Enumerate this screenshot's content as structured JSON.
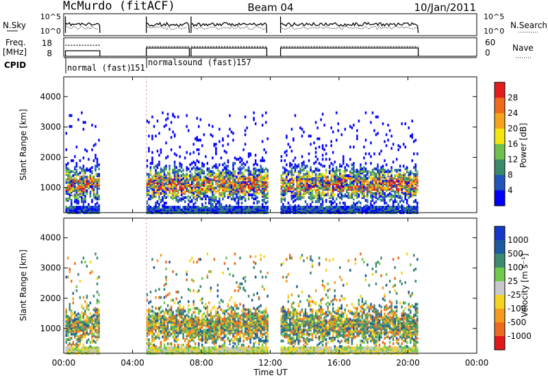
{
  "header": {
    "station": "McMurdo (fitACF)",
    "beam": "Beam 04",
    "date": "10/Jan/2011"
  },
  "status_panels": {
    "nsky_label": "N.Sky",
    "nsky_ticks": [
      "10^5",
      "10^0"
    ],
    "nsky_right_ticks": [
      "10^5",
      "10^0"
    ],
    "nsearch_label": "N.Search",
    "freq_label_1": "Freq.",
    "freq_label_2": "[MHz]",
    "freq_ticks": [
      "18",
      "8"
    ],
    "nave_ticks": [
      "60",
      "0"
    ],
    "nave_label": "Nave",
    "cpid_label": "CPID",
    "cpid_segments": [
      {
        "start_hour": 0.05,
        "end_hour": 4.8,
        "label": "normal (fast)",
        "id": "151"
      },
      {
        "start_hour": 4.8,
        "end_hour": 20.6,
        "label": "normalsound (fast)",
        "id": "157"
      }
    ]
  },
  "chart_data": [
    {
      "type": "heatmap",
      "name": "Power",
      "ylabel": "Slant Range [km]",
      "ylim": [
        180,
        4650
      ],
      "yticks": [
        "1000",
        "2000",
        "3000",
        "4000"
      ],
      "xlim": [
        0,
        24
      ],
      "colorbar_label": "Power [dB]",
      "colorbar_ticks": [
        "4",
        "8",
        "12",
        "16",
        "20",
        "24",
        "28"
      ],
      "colorbar_colors": [
        "#0000ff",
        "#2255bb",
        "#3a8a6a",
        "#6fc04a",
        "#f2e60c",
        "#f7a21b",
        "#f06a1a",
        "#e41c1c"
      ],
      "data_intervals_hours": [
        [
          0.1,
          2.1
        ],
        [
          4.8,
          7.3
        ],
        [
          7.4,
          11.8
        ],
        [
          12.6,
          20.6
        ]
      ]
    },
    {
      "type": "heatmap",
      "name": "Velocity",
      "ylabel": "Slant Range [km]",
      "ylim": [
        180,
        4650
      ],
      "yticks": [
        "1000",
        "2000",
        "3000",
        "4000"
      ],
      "xlim": [
        0,
        24
      ],
      "colorbar_label": "Velocity [m s⁻¹]",
      "colorbar_ticks": [
        "1000",
        "500",
        "100",
        "25",
        "-25",
        "-100",
        "-500",
        "-1000"
      ],
      "colorbar_colors": [
        "#1538c8",
        "#1e5aa0",
        "#3d8a72",
        "#6fc94a",
        "#c8c8c8",
        "#f5d21e",
        "#f59a1e",
        "#ee6a1e",
        "#e01818"
      ],
      "data_intervals_hours": [
        [
          0.1,
          2.1
        ],
        [
          4.8,
          7.3
        ],
        [
          7.4,
          11.8
        ],
        [
          12.6,
          20.6
        ]
      ]
    }
  ],
  "xaxis": {
    "label": "Time UT",
    "ticks": [
      "00:00",
      "04:00",
      "08:00",
      "12:00",
      "16:00",
      "20:00",
      "00:00"
    ]
  }
}
